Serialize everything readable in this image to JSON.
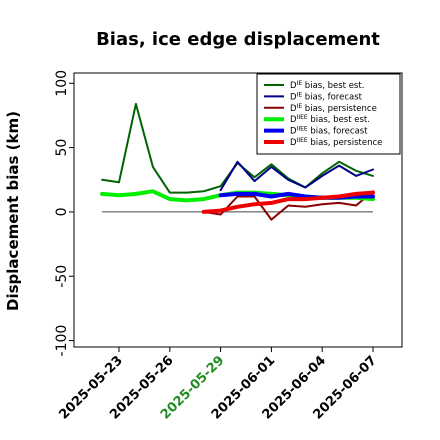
{
  "chart_data": {
    "type": "line",
    "title": "Bias, ice edge displacement",
    "xlabel": "",
    "ylabel": "Displacement bias (km)",
    "ylim": [
      -105,
      108
    ],
    "yticks": [
      100,
      50,
      0,
      -50,
      -100
    ],
    "xticks": [
      "2025-05-23",
      "2025-05-26",
      "2025-05-29",
      "2025-06-01",
      "2025-06-04",
      "2025-06-07"
    ],
    "highlight_tick": "2025-05-29",
    "highlight_color": "#228b22",
    "zero_line": true,
    "grid": false,
    "legend_position": "top-right",
    "series": [
      {
        "name": "D^IE bias, best est.",
        "color": "#006400",
        "width": 2,
        "x": [
          "2025-05-22",
          "2025-05-23",
          "2025-05-24",
          "2025-05-25",
          "2025-05-26",
          "2025-05-27",
          "2025-05-28",
          "2025-05-29",
          "2025-05-30",
          "2025-05-31",
          "2025-06-01",
          "2025-06-02",
          "2025-06-03",
          "2025-06-04",
          "2025-06-05",
          "2025-06-06",
          "2025-06-07"
        ],
        "y": [
          25,
          23,
          84,
          35,
          15,
          15,
          16,
          20,
          38,
          27,
          37,
          26,
          19,
          30,
          39,
          32,
          28
        ]
      },
      {
        "name": "D^IE bias, forecast",
        "color": "#00008b",
        "width": 2,
        "x": [
          "2025-05-29",
          "2025-05-30",
          "2025-05-31",
          "2025-06-01",
          "2025-06-02",
          "2025-06-03",
          "2025-06-04",
          "2025-06-05",
          "2025-06-06",
          "2025-06-07"
        ],
        "y": [
          17,
          39,
          24,
          35,
          25,
          19,
          28,
          36,
          28,
          33
        ]
      },
      {
        "name": "D^IE bias, persistence",
        "color": "#8b0000",
        "width": 2,
        "x": [
          "2025-05-28",
          "2025-05-29",
          "2025-05-30",
          "2025-05-31",
          "2025-06-01",
          "2025-06-02",
          "2025-06-03",
          "2025-06-04",
          "2025-06-05",
          "2025-06-06",
          "2025-06-07"
        ],
        "y": [
          0,
          -2,
          12,
          12,
          -6,
          5,
          4,
          6,
          7,
          5,
          16
        ]
      },
      {
        "name": "D^IIEE bias, best est.",
        "color": "#00ee00",
        "width": 4,
        "x": [
          "2025-05-22",
          "2025-05-23",
          "2025-05-24",
          "2025-05-25",
          "2025-05-26",
          "2025-05-27",
          "2025-05-28",
          "2025-05-29",
          "2025-05-30",
          "2025-05-31",
          "2025-06-01",
          "2025-06-02",
          "2025-06-03",
          "2025-06-04",
          "2025-06-05",
          "2025-06-06",
          "2025-06-07"
        ],
        "y": [
          14,
          13,
          14,
          16,
          10,
          9,
          10,
          13,
          15,
          15,
          14,
          13,
          12,
          11,
          11,
          11,
          10
        ]
      },
      {
        "name": "D^IIEE bias, forecast",
        "color": "#0000ee",
        "width": 4,
        "x": [
          "2025-05-29",
          "2025-05-30",
          "2025-05-31",
          "2025-06-01",
          "2025-06-02",
          "2025-06-03",
          "2025-06-04",
          "2025-06-05",
          "2025-06-06",
          "2025-06-07"
        ],
        "y": [
          13,
          14,
          14,
          12,
          14,
          12,
          11,
          11,
          12,
          12
        ]
      },
      {
        "name": "D^IIEE bias, persistence",
        "color": "#ee0000",
        "width": 4,
        "x": [
          "2025-05-28",
          "2025-05-29",
          "2025-05-30",
          "2025-05-31",
          "2025-06-01",
          "2025-06-02",
          "2025-06-03",
          "2025-06-04",
          "2025-06-05",
          "2025-06-06",
          "2025-06-07"
        ],
        "y": [
          0,
          1,
          4,
          6,
          7,
          10,
          10,
          11,
          12,
          14,
          15
        ]
      }
    ],
    "legend_labels": [
      {
        "sup": "IE",
        "rest": " bias, best est."
      },
      {
        "sup": "IE",
        "rest": " bias, forecast"
      },
      {
        "sup": "IE",
        "rest": " bias, persistence"
      },
      {
        "sup": "IIEE",
        "rest": " bias, best est."
      },
      {
        "sup": "IIEE",
        "rest": " bias, forecast"
      },
      {
        "sup": "IIEE",
        "rest": " bias, persistence"
      }
    ]
  }
}
